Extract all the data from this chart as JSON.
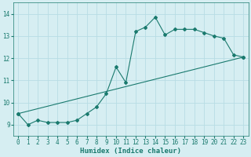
{
  "title": "",
  "xlabel": "Humidex (Indice chaleur)",
  "ylabel": "",
  "bg_color": "#d6eef2",
  "line_color": "#1a7a6e",
  "xlim": [
    -0.5,
    23.5
  ],
  "ylim": [
    8.5,
    14.5
  ],
  "xticks": [
    0,
    1,
    2,
    3,
    4,
    5,
    6,
    7,
    8,
    9,
    10,
    11,
    12,
    13,
    14,
    15,
    16,
    17,
    18,
    19,
    20,
    21,
    22,
    23
  ],
  "yticks": [
    9,
    10,
    11,
    12,
    13,
    14
  ],
  "line1_x": [
    0,
    1,
    2,
    3,
    4,
    5,
    6,
    7,
    8,
    9,
    10,
    11,
    12,
    13,
    14,
    15,
    16,
    17,
    18,
    19,
    20,
    21,
    22,
    23
  ],
  "line1_y": [
    9.5,
    9.0,
    9.2,
    9.1,
    9.1,
    9.1,
    9.2,
    9.5,
    9.8,
    10.4,
    11.6,
    10.9,
    13.2,
    13.4,
    13.85,
    13.05,
    13.3,
    13.3,
    13.3,
    13.15,
    13.0,
    12.9,
    12.15,
    12.05
  ],
  "line2_x": [
    0,
    23
  ],
  "line2_y": [
    9.5,
    12.05
  ],
  "grid_color": "#b8dde4",
  "marker": "D",
  "marker_size": 2.0,
  "tick_fontsize": 5.5,
  "xlabel_fontsize": 6.5
}
